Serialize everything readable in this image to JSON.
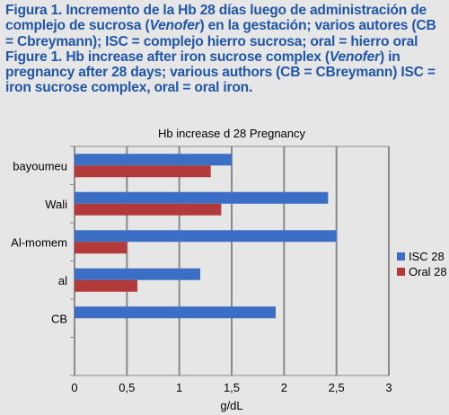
{
  "caption": {
    "es": {
      "pre": "Figura 1. Incremento de la Hb 28 días luego de administración de complejo de sucrosa (",
      "italic": "Venofer",
      "post": ") en la gestación; varios autores (CB = Cbreymann); ISC = complejo hierro sucrosa; oral = hierro oral"
    },
    "en": {
      "pre": "Figure 1. Hb increase after iron sucrose complex (",
      "italic": "Venofer",
      "post": ") in pregnancy after 28 days; various authors (CB = CBreymann) ISC = iron sucrose complex, oral = oral iron."
    }
  },
  "colors": {
    "caption": "#1f56a8",
    "isc": "#3a6fc5",
    "oral": "#b23a3a",
    "background": "#e6e6e6",
    "gridline": "#8a8a8a"
  },
  "chart_data": {
    "type": "bar",
    "orientation": "horizontal",
    "title": "Hb increase d 28 Pregnancy",
    "xlabel": "g/dL",
    "ylabel": "",
    "xlim": [
      0,
      3
    ],
    "xticks": [
      "0",
      "0,5",
      "1",
      "1,5",
      "2",
      "2,5",
      "3"
    ],
    "categories": [
      "bayoumeu",
      "Wali",
      "Al-momem",
      "al",
      "CB",
      ""
    ],
    "series": [
      {
        "name": "ISC 28",
        "color": "#3a6fc5",
        "values": [
          1.5,
          2.42,
          2.5,
          1.2,
          1.92,
          null
        ]
      },
      {
        "name": "Oral 28",
        "color": "#b23a3a",
        "values": [
          1.3,
          1.4,
          0.5,
          0.6,
          null,
          null
        ]
      }
    ],
    "grid": true,
    "legend": "right"
  }
}
